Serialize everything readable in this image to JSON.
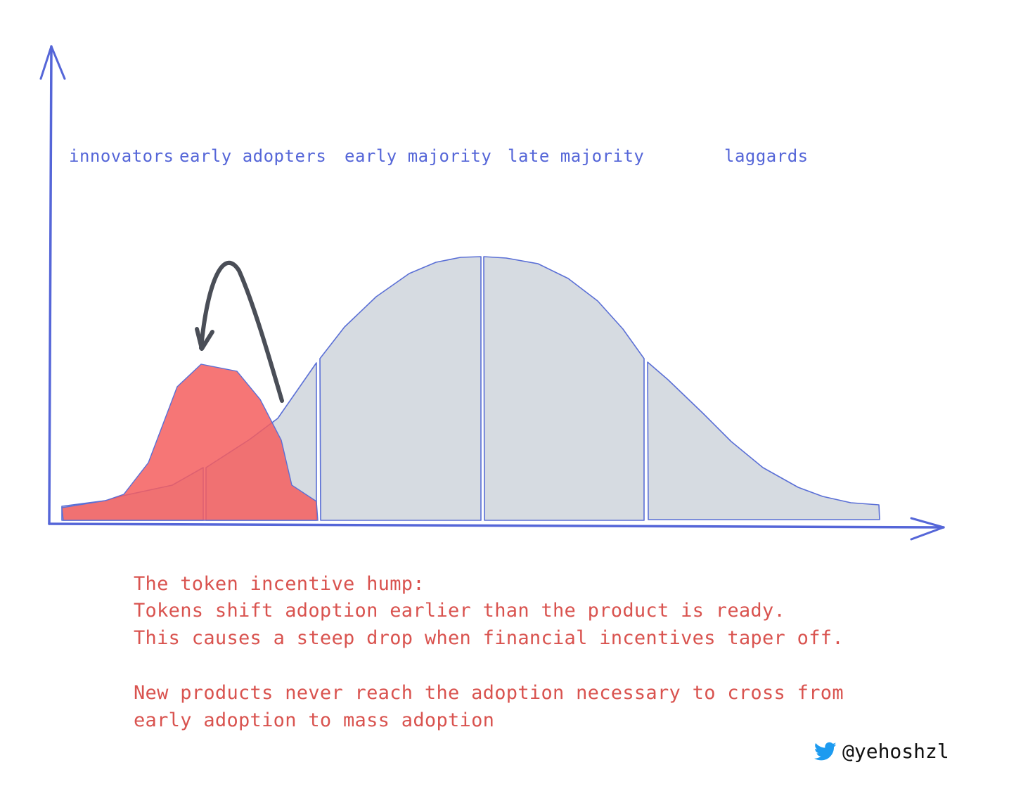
{
  "segments": [
    {
      "key": "innovators",
      "label": "innovators"
    },
    {
      "key": "early_adopters",
      "label": "early adopters"
    },
    {
      "key": "early_majority",
      "label": "early majority"
    },
    {
      "key": "late_majority",
      "label": "late majority"
    },
    {
      "key": "laggards",
      "label": "laggards"
    }
  ],
  "note": {
    "line1": "The token incentive hump:",
    "line2": "Tokens shift adoption earlier than the product is ready.",
    "line3": "This causes a steep drop when financial incentives taper off.",
    "line4": "New products never reach the adoption necessary to cross from",
    "line5": "early adoption to mass adoption"
  },
  "credit": {
    "icon": "twitter-bird-icon",
    "handle": "@yehoshzl"
  },
  "colors": {
    "axis": "#5566d8",
    "curve_fill": "#d6dbe1",
    "curve_stroke": "#5a6fd6",
    "hump_fill": "#f55e5e",
    "arrow": "#4a4e57",
    "note_text": "#d9534f",
    "twitter": "#1d9bf0"
  }
}
